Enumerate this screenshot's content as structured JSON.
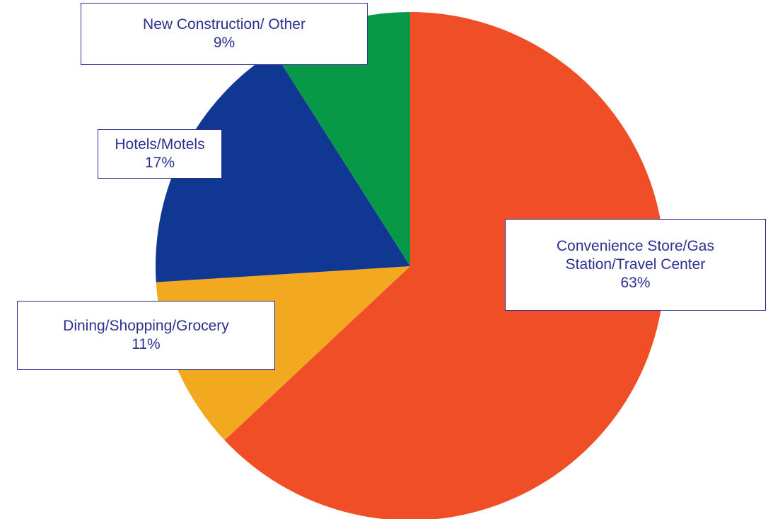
{
  "chart_data": {
    "type": "pie",
    "title": "",
    "slices": [
      {
        "name": "Convenience Store/Gas Station/Travel Center",
        "label_lines": [
          "Convenience Store/Gas",
          "Station/Travel Center"
        ],
        "value": 63,
        "display": "63%",
        "color": "#ef4e27"
      },
      {
        "name": "Dining/Shopping/Grocery",
        "label_lines": [
          "Dining/Shopping/Grocery"
        ],
        "value": 11,
        "display": "11%",
        "color": "#f2a81f"
      },
      {
        "name": "Hotels/Motels",
        "label_lines": [
          "Hotels/Motels"
        ],
        "value": 17,
        "display": "17%",
        "color": "#103892"
      },
      {
        "name": "New Construction/ Other",
        "label_lines": [
          "New Construction/ Other"
        ],
        "value": 9,
        "display": "9%",
        "color": "#079848"
      }
    ],
    "start_angle": "12 o'clock",
    "direction": "clockwise",
    "legend": "none",
    "label_style": "boxed callouts with white fill and dark blue border"
  }
}
